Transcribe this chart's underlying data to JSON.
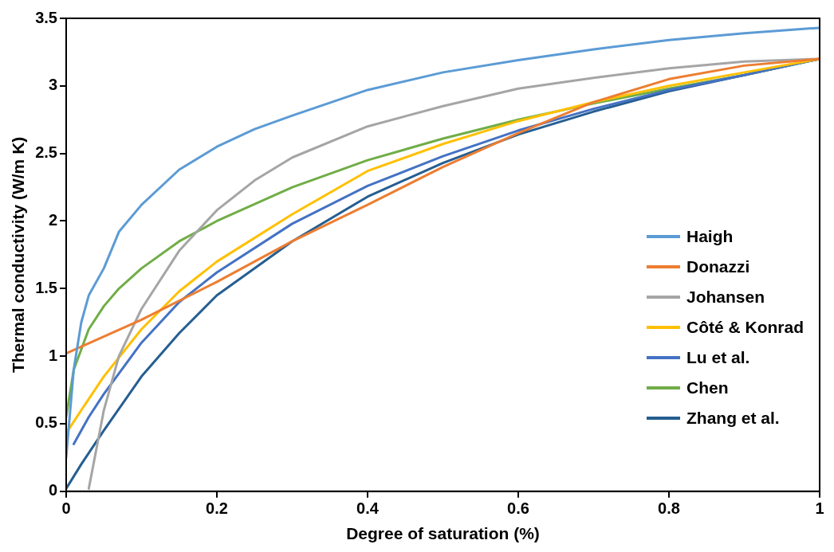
{
  "chart_data": {
    "type": "line",
    "xlabel": "Degree of saturation (%)",
    "ylabel": "Thermal conductivity (W/m K)",
    "xlim": [
      0,
      1
    ],
    "xticks": [
      0,
      0.2,
      0.4,
      0.6,
      0.8,
      1
    ],
    "ylim": [
      0,
      3.5
    ],
    "yticks": [
      0,
      0.5,
      1,
      1.5,
      2,
      2.5,
      3,
      3.5
    ],
    "grid": false,
    "legend": "right",
    "marker": "none",
    "line_style": "solid",
    "series": [
      {
        "name": "Haigh",
        "color": "#5b9bd5",
        "x": [
          0,
          0.01,
          0.02,
          0.03,
          0.05,
          0.07,
          0.1,
          0.15,
          0.2,
          0.25,
          0.3,
          0.4,
          0.5,
          0.6,
          0.7,
          0.8,
          0.9,
          1
        ],
        "values": [
          0.25,
          0.9,
          1.25,
          1.45,
          1.65,
          1.92,
          2.12,
          2.38,
          2.55,
          2.68,
          2.78,
          2.97,
          3.1,
          3.19,
          3.27,
          3.34,
          3.39,
          3.43
        ]
      },
      {
        "name": "Donazzi",
        "color": "#ed7d31",
        "x": [
          0,
          0.1,
          0.2,
          0.3,
          0.4,
          0.5,
          0.6,
          0.7,
          0.8,
          0.9,
          1
        ],
        "values": [
          1.02,
          1.27,
          1.55,
          1.85,
          2.12,
          2.4,
          2.65,
          2.88,
          3.05,
          3.15,
          3.2
        ]
      },
      {
        "name": "Johansen",
        "color": "#a5a5a5",
        "x": [
          0.03,
          0.05,
          0.07,
          0.1,
          0.15,
          0.2,
          0.25,
          0.3,
          0.4,
          0.5,
          0.6,
          0.7,
          0.8,
          0.9,
          1
        ],
        "values": [
          0.02,
          0.6,
          1.0,
          1.35,
          1.78,
          2.08,
          2.3,
          2.47,
          2.7,
          2.85,
          2.98,
          3.06,
          3.13,
          3.18,
          3.2
        ]
      },
      {
        "name": "Côté & Konrad",
        "color": "#ffc000",
        "x": [
          0,
          0.02,
          0.05,
          0.1,
          0.15,
          0.2,
          0.3,
          0.4,
          0.5,
          0.6,
          0.7,
          0.8,
          0.9,
          1
        ],
        "values": [
          0.43,
          0.6,
          0.85,
          1.2,
          1.48,
          1.7,
          2.05,
          2.37,
          2.57,
          2.74,
          2.88,
          3.0,
          3.1,
          3.2
        ]
      },
      {
        "name": "Lu et al.",
        "color": "#4472c4",
        "x": [
          0.01,
          0.03,
          0.05,
          0.1,
          0.15,
          0.2,
          0.3,
          0.4,
          0.5,
          0.6,
          0.7,
          0.8,
          0.9,
          1
        ],
        "values": [
          0.35,
          0.55,
          0.72,
          1.1,
          1.4,
          1.62,
          1.98,
          2.26,
          2.48,
          2.67,
          2.83,
          2.97,
          3.08,
          3.2
        ]
      },
      {
        "name": "Chen",
        "color": "#70ad47",
        "x": [
          0,
          0.01,
          0.02,
          0.03,
          0.05,
          0.07,
          0.1,
          0.15,
          0.2,
          0.3,
          0.4,
          0.5,
          0.6,
          0.7,
          0.8,
          0.9,
          1
        ],
        "values": [
          0.55,
          0.9,
          1.05,
          1.2,
          1.37,
          1.5,
          1.65,
          1.85,
          2.0,
          2.25,
          2.45,
          2.61,
          2.75,
          2.87,
          2.98,
          3.08,
          3.2
        ]
      },
      {
        "name": "Zhang et al.",
        "color": "#255e91",
        "x": [
          0,
          0.02,
          0.05,
          0.1,
          0.15,
          0.2,
          0.3,
          0.4,
          0.5,
          0.6,
          0.7,
          0.8,
          0.9,
          1
        ],
        "values": [
          0.02,
          0.2,
          0.45,
          0.85,
          1.17,
          1.45,
          1.85,
          2.18,
          2.43,
          2.64,
          2.81,
          2.96,
          3.08,
          3.2
        ]
      }
    ]
  }
}
